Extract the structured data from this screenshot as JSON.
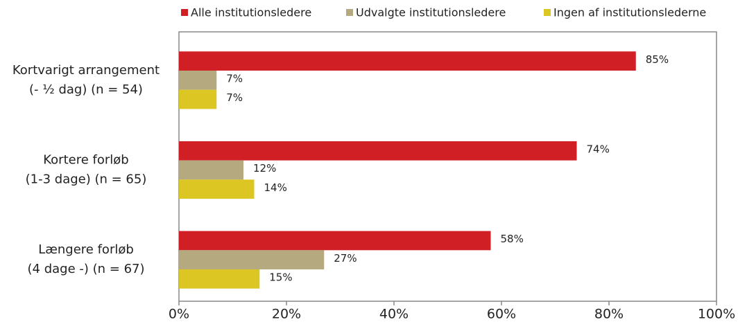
{
  "chart_data": {
    "type": "bar",
    "orientation": "horizontal",
    "categories": [
      [
        "Kortvarigt arrangement",
        "(- ½ dag) (n = 54)"
      ],
      [
        "Kortere forløb",
        "(1-3 dage) (n = 65)"
      ],
      [
        "Længere forløb",
        "(4 dage -) (n = 67)"
      ]
    ],
    "series": [
      {
        "name": "Alle institutionsledere",
        "color": "#d11f26",
        "values": [
          85,
          74,
          58
        ],
        "value_labels": [
          "85%",
          "74%",
          "58%"
        ]
      },
      {
        "name": "Udvalgte institutionsledere",
        "color": "#b4a97f",
        "values": [
          7,
          12,
          27
        ],
        "value_labels": [
          "7%",
          "12%",
          "27%"
        ]
      },
      {
        "name": "Ingen af institutionslederne",
        "color": "#dcc623",
        "values": [
          7,
          14,
          15
        ],
        "value_labels": [
          "7%",
          "14%",
          "15%"
        ]
      }
    ],
    "xlim": [
      0,
      100
    ],
    "xticks": [
      {
        "value": 0,
        "label": "0%"
      },
      {
        "value": 20,
        "label": "20%"
      },
      {
        "value": 40,
        "label": "40%"
      },
      {
        "value": 60,
        "label": "60%"
      },
      {
        "value": 80,
        "label": "80%"
      },
      {
        "value": 100,
        "label": "100%"
      }
    ],
    "legend": "top"
  }
}
